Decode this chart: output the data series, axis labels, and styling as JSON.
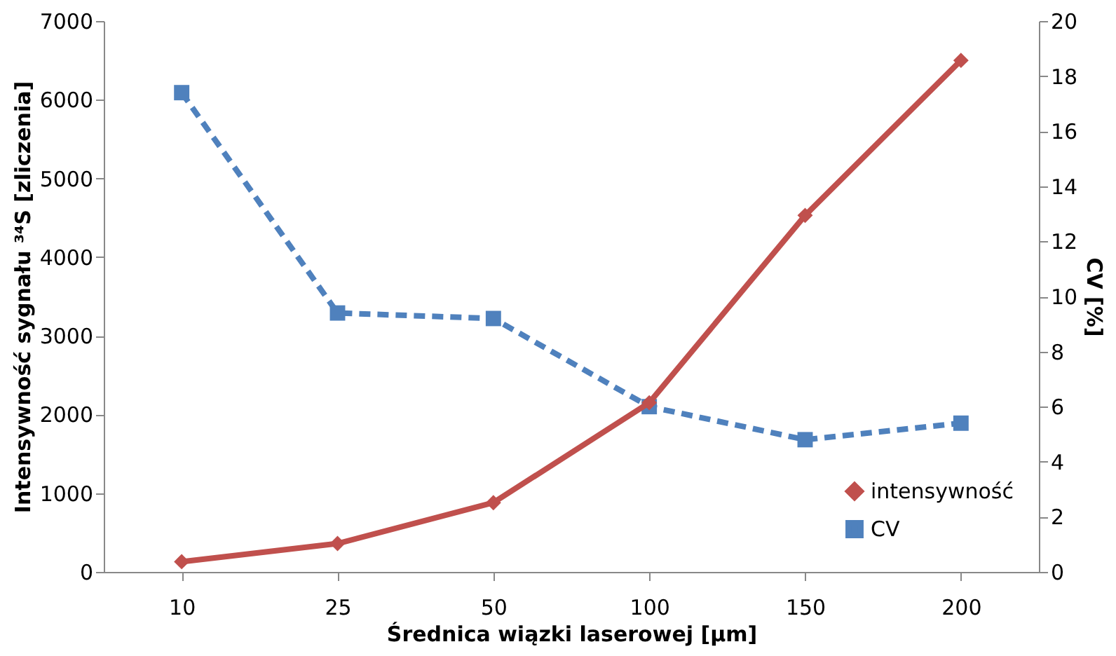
{
  "chart_data": {
    "type": "line",
    "xlabel": "Średnica wiązki laserowej [µm]",
    "ylabel": "Intensywność sygnału ³⁴S [zliczenia]",
    "y2label": "CV [%]",
    "categories": [
      "10",
      "25",
      "50",
      "100",
      "150",
      "200"
    ],
    "series": [
      {
        "name": "intensywność",
        "color": "#c0504d",
        "values": [
          130,
          360,
          880,
          2150,
          4530,
          6500
        ],
        "marker": "diamond",
        "line_style": "solid"
      },
      {
        "name": "CV",
        "color": "#4f81bd",
        "values": [
          17.4,
          9.4,
          9.2,
          6.0,
          4.8,
          5.4
        ],
        "axis": "y2",
        "marker": "square",
        "line_style": "dashed"
      }
    ],
    "ylim": [
      0,
      7000
    ],
    "yticks": [
      0,
      1000,
      2000,
      3000,
      4000,
      5000,
      6000,
      7000
    ],
    "y2lim": [
      0,
      20
    ],
    "y2ticks": [
      0,
      2,
      4,
      6,
      8,
      10,
      12,
      14,
      16,
      18,
      20
    ],
    "grid": false,
    "legend": "bottom right"
  }
}
